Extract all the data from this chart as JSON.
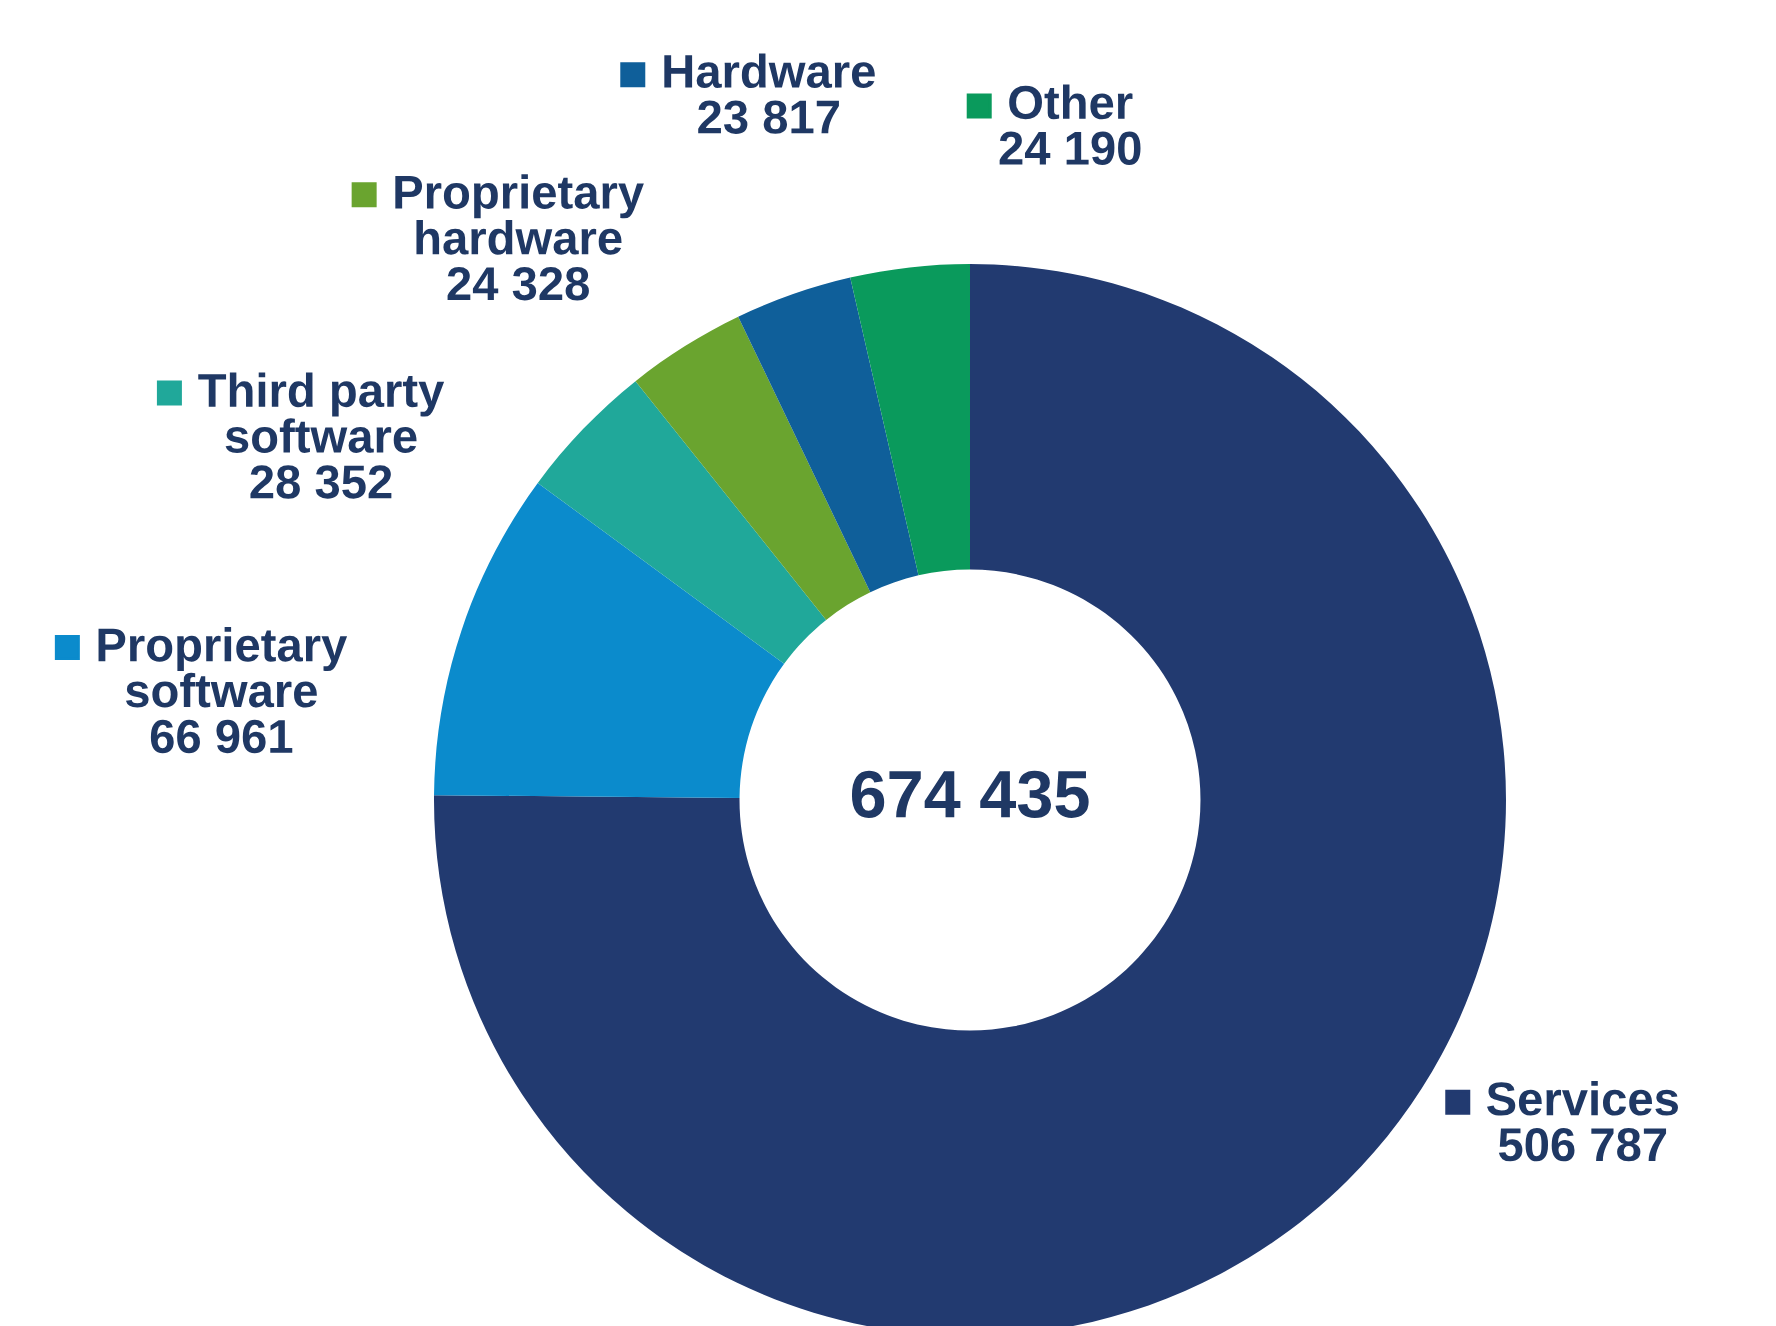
{
  "chart_data": {
    "type": "donut",
    "categories": [
      "Services",
      "Proprietary\nsoftware",
      "Third party\nsoftware",
      "Proprietary\nhardware",
      "Hardware",
      "Other"
    ],
    "values": [
      506787,
      66961,
      28352,
      24328,
      23817,
      24190
    ],
    "value_labels": [
      "506 787",
      "66 961",
      "28 352",
      "24 328",
      "23 817",
      "24 190"
    ],
    "colors": [
      "#223a70",
      "#0b8bcc",
      "#20a89a",
      "#6aa42f",
      "#0f5f9a",
      "#0a9a5c"
    ],
    "annotations": [
      "674 435"
    ],
    "legend": "top left"
  }
}
